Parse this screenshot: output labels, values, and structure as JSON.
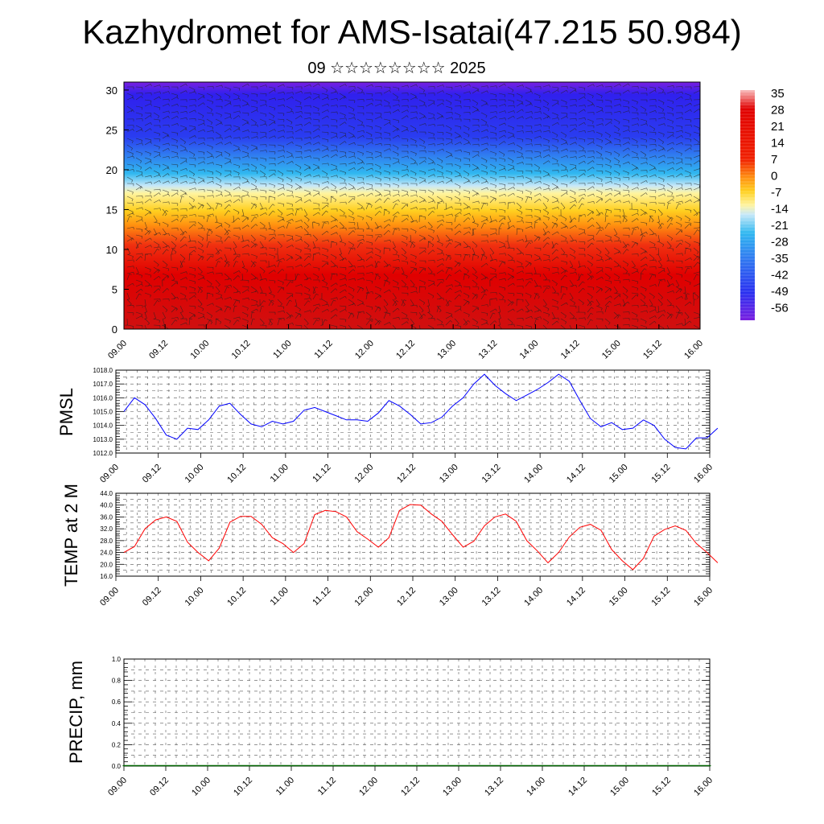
{
  "title": "Kazhydromet for AMS-Isatai(47.215 50.984)",
  "subtitle": "09 ☆☆☆☆☆☆☆☆ 2025",
  "chart_data": [
    {
      "type": "heatmap",
      "name": "temperature-wind-cross-section",
      "x_ticks": [
        "09.00",
        "09.12",
        "10.00",
        "10.12",
        "11.00",
        "11.12",
        "12.00",
        "12.12",
        "13.00",
        "13.12",
        "14.00",
        "14.12",
        "15.00",
        "15.12",
        "16.00"
      ],
      "y_ticks": [
        "0",
        "5",
        "10",
        "15",
        "20",
        "25",
        "30"
      ],
      "ylim": [
        0,
        31
      ],
      "colorbar_labels": [
        "35",
        "28",
        "21",
        "14",
        "7",
        "0",
        "-7",
        "-14",
        "-21",
        "-28",
        "-35",
        "-42",
        "-49",
        "-56"
      ],
      "colors": {
        "warm": "#e00000",
        "hot": "#f8b0b0",
        "yellow": "#fff070",
        "cyan": "#20b0f0",
        "blue": "#2020e8",
        "violet": "#7020e0"
      }
    },
    {
      "type": "line",
      "ylabel": "PMSL",
      "x_ticks": [
        "09.00",
        "09.12",
        "10.00",
        "10.12",
        "11.00",
        "11.12",
        "12.00",
        "12.12",
        "13.00",
        "13.12",
        "14.00",
        "14.12",
        "15.00",
        "15.12",
        "16.00"
      ],
      "y_ticks": [
        "1012.0",
        "1013.0",
        "1014.0",
        "1015.0",
        "1016.0",
        "1017.0",
        "1018.0"
      ],
      "ylim": [
        1012,
        1018
      ],
      "color": "#0000ff",
      "values": [
        1015.0,
        1016.0,
        1015.5,
        1014.5,
        1013.3,
        1013.0,
        1013.8,
        1013.7,
        1014.4,
        1015.4,
        1015.6,
        1014.8,
        1014.1,
        1013.9,
        1014.3,
        1014.1,
        1014.3,
        1015.1,
        1015.3,
        1015.0,
        1014.7,
        1014.4,
        1014.4,
        1014.3,
        1014.9,
        1015.8,
        1015.4,
        1014.8,
        1014.1,
        1014.2,
        1014.6,
        1015.4,
        1016.0,
        1017.0,
        1017.7,
        1016.9,
        1016.3,
        1015.8,
        1016.2,
        1016.6,
        1017.1,
        1017.7,
        1017.2,
        1015.8,
        1014.5,
        1013.9,
        1014.2,
        1013.7,
        1013.8,
        1014.4,
        1014.0,
        1013.0,
        1012.4,
        1012.3,
        1013.1,
        1013.1,
        1013.8
      ]
    },
    {
      "type": "line",
      "ylabel": "TEMP at 2 M",
      "x_ticks": [
        "09.00",
        "09.12",
        "10.00",
        "10.12",
        "11.00",
        "11.12",
        "12.00",
        "12.12",
        "13.00",
        "13.12",
        "14.00",
        "14.12",
        "15.00",
        "15.12",
        "16.00"
      ],
      "y_ticks": [
        "16.0",
        "20.0",
        "24.0",
        "28.0",
        "32.0",
        "36.0",
        "40.0",
        "44.0"
      ],
      "ylim": [
        16,
        44
      ],
      "color": "#ff0000",
      "values": [
        24,
        26,
        32,
        35,
        36,
        34.5,
        27.5,
        24,
        21.2,
        25.5,
        34.2,
        36.2,
        36.2,
        33.5,
        29,
        27,
        24,
        27,
        36.8,
        38.2,
        37.8,
        36,
        31,
        28.5,
        25.8,
        29,
        38.2,
        40.2,
        40,
        37,
        34.5,
        30,
        25.8,
        27.8,
        33,
        36,
        37,
        34.5,
        28,
        24.5,
        20.5,
        24,
        29.2,
        32.5,
        33.5,
        31.5,
        25,
        21.2,
        18.2,
        22,
        29.5,
        31.8,
        33,
        31.5,
        27,
        24,
        20.5
      ]
    },
    {
      "type": "bar",
      "ylabel": "PRECIP, mm",
      "x_ticks": [
        "09.00",
        "09.12",
        "10.00",
        "10.12",
        "11.00",
        "11.12",
        "12.00",
        "12.12",
        "13.00",
        "13.12",
        "14.00",
        "14.12",
        "15.00",
        "15.12",
        "16.00"
      ],
      "y_ticks": [
        "0.0",
        "0.2",
        "0.4",
        "0.6",
        "0.8",
        "1.0"
      ],
      "ylim": [
        0,
        1
      ],
      "color": "#006400",
      "values": [
        0,
        0,
        0,
        0,
        0,
        0,
        0,
        0,
        0,
        0,
        0,
        0,
        0,
        0,
        0,
        0,
        0,
        0,
        0,
        0,
        0,
        0,
        0,
        0,
        0,
        0,
        0,
        0,
        0,
        0,
        0,
        0,
        0,
        0,
        0,
        0,
        0,
        0,
        0,
        0,
        0,
        0,
        0,
        0,
        0,
        0,
        0,
        0,
        0,
        0,
        0,
        0,
        0,
        0,
        0,
        0,
        0
      ]
    }
  ]
}
